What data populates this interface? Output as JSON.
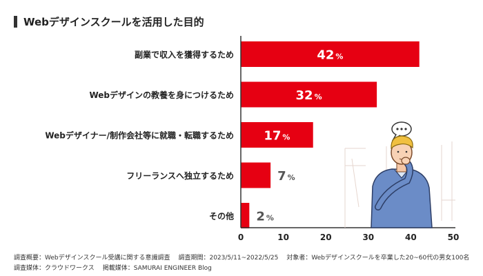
{
  "title": "Webデザインスクールを活用した目的",
  "footnotes": {
    "survey_label": "調査概要：",
    "survey": "Webデザインスクール受講に関する意識調査",
    "period_label": "調査期間：",
    "period": "2023/5/11~2022/5/25",
    "target_label": "対象者：",
    "target": "Webデザインスクールを卒業した20~60代の男女100名",
    "media_label": "調査媒体：",
    "media": "クラウドワークス",
    "pub_label": "掲載媒体：",
    "pub": "SAMURAI ENGINEER Blog"
  },
  "colors": {
    "bar": "#e60012",
    "label_inside": "#ffffff",
    "label_outside": "#555555",
    "axis": "#333333"
  },
  "illustration": "thinking-man-icon",
  "chart_data": {
    "type": "bar",
    "orientation": "horizontal",
    "categories": [
      "副業で収入を獲得するため",
      "Webデザインの教養を身につけるため",
      "Webデザイナー/制作会社等に就職・転職するため",
      "フリーランスへ独立するため",
      "その他"
    ],
    "values": [
      42,
      32,
      17,
      7,
      2
    ],
    "unit": "%",
    "xlim": [
      0,
      50
    ],
    "xticks": [
      0,
      10,
      20,
      30,
      40,
      50
    ],
    "grid": false,
    "legend": "none"
  }
}
